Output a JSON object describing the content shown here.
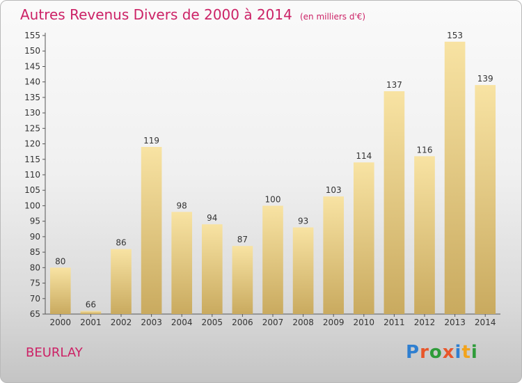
{
  "chart_data": {
    "type": "bar",
    "title": "Autres Revenus Divers de 2000 à 2014",
    "unit_label": "(en milliers d'€)",
    "categories": [
      "2000",
      "2001",
      "2002",
      "2003",
      "2004",
      "2005",
      "2006",
      "2007",
      "2008",
      "2009",
      "2010",
      "2011",
      "2012",
      "2013",
      "2014"
    ],
    "values": [
      80,
      66,
      86,
      119,
      98,
      94,
      87,
      100,
      93,
      103,
      114,
      137,
      116,
      153,
      139
    ],
    "ylim": [
      65,
      155
    ],
    "yticks": [
      65,
      70,
      75,
      80,
      85,
      90,
      95,
      100,
      105,
      110,
      115,
      120,
      125,
      130,
      135,
      140,
      145,
      150,
      155
    ],
    "grid": false,
    "bar_color_top": "#f8e3a3",
    "bar_color_bottom": "#c9aa5f"
  },
  "place_name": "BEURLAY",
  "logo": {
    "text": "Proxiti",
    "letters": [
      {
        "char": "P",
        "color": "#2f7fd0"
      },
      {
        "char": "r",
        "color": "#e8562a"
      },
      {
        "char": "o",
        "color": "#2f9c3a"
      },
      {
        "char": "x",
        "color": "#e8562a"
      },
      {
        "char": "i",
        "color": "#2f7fd0"
      },
      {
        "char": "t",
        "color": "#f2a31b"
      },
      {
        "char": "i",
        "color": "#2f9c3a"
      }
    ]
  },
  "colors": {
    "title": "#cc2266",
    "axis_text": "#333333"
  }
}
